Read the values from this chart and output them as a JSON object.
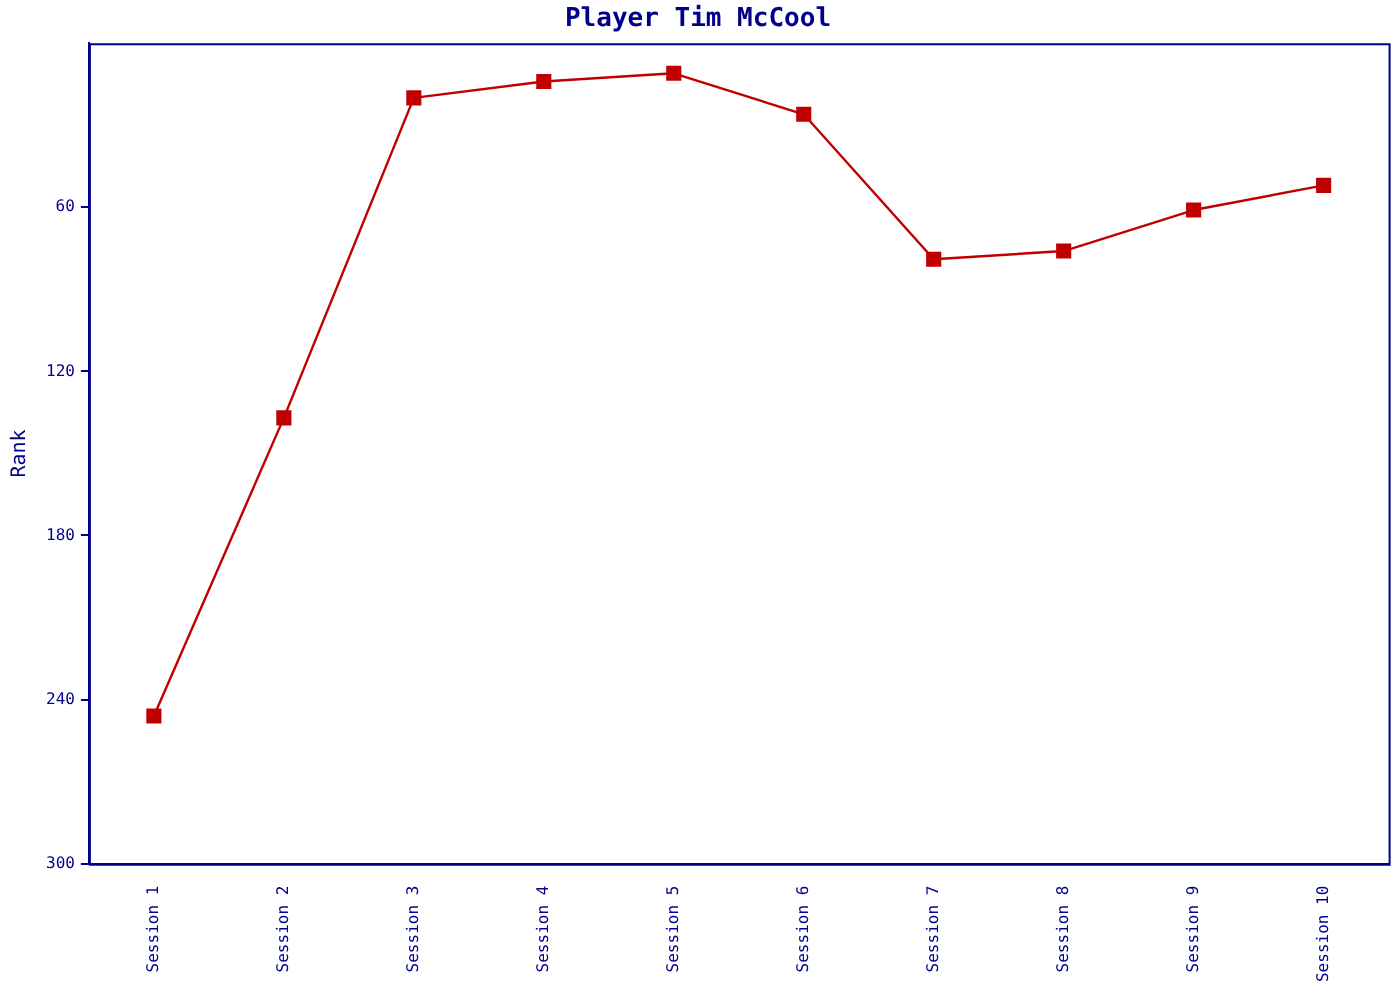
{
  "chart_data": {
    "type": "line",
    "title": "Player Tim McCool",
    "ylabel": "Rank",
    "categories": [
      "Session 1",
      "Session 2",
      "Session 3",
      "Session 4",
      "Session 5",
      "Session 6",
      "Session 7",
      "Session 8",
      "Session 9",
      "Session 10"
    ],
    "series": [
      {
        "color": "#c00000",
        "values": [
          246,
          137,
          20,
          14,
          11,
          26,
          79,
          76,
          61,
          52
        ]
      }
    ],
    "ylim": [
      300,
      0
    ],
    "yticks": [
      60,
      120,
      180,
      240,
      300
    ],
    "grid": false,
    "legend": false,
    "marker": "square",
    "line_style": "solid"
  }
}
